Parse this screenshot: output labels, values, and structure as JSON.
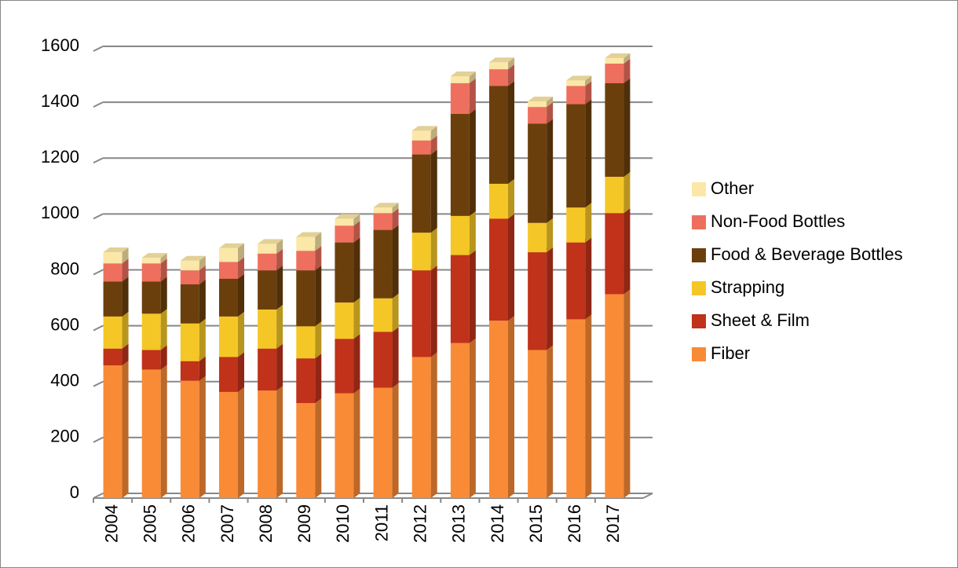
{
  "chart_data": {
    "type": "stacked-bar-3d",
    "categories": [
      "2004",
      "2005",
      "2006",
      "2007",
      "2008",
      "2009",
      "2010",
      "2011",
      "2012",
      "2013",
      "2014",
      "2015",
      "2016",
      "2017"
    ],
    "series": [
      {
        "name": "Fiber",
        "color": "#f98b36",
        "values": [
          475,
          460,
          420,
          380,
          385,
          340,
          375,
          395,
          505,
          555,
          635,
          530,
          640,
          730
        ]
      },
      {
        "name": "Sheet & Film",
        "color": "#c0321a",
        "values": [
          60,
          70,
          70,
          125,
          150,
          160,
          195,
          200,
          310,
          315,
          365,
          350,
          275,
          290
        ]
      },
      {
        "name": "Strapping",
        "color": "#f5c726",
        "values": [
          115,
          130,
          135,
          145,
          140,
          115,
          130,
          120,
          135,
          140,
          125,
          105,
          125,
          130
        ]
      },
      {
        "name": "Food & Beverage Bottles",
        "color": "#6b3f0c",
        "values": [
          125,
          115,
          140,
          135,
          140,
          200,
          215,
          245,
          280,
          365,
          350,
          355,
          370,
          335
        ]
      },
      {
        "name": "Non-Food Bottles",
        "color": "#ef6f5e",
        "values": [
          65,
          65,
          50,
          60,
          60,
          70,
          60,
          60,
          50,
          110,
          60,
          60,
          65,
          70
        ]
      },
      {
        "name": "Other",
        "color": "#fbe7a7",
        "values": [
          40,
          20,
          35,
          50,
          35,
          50,
          25,
          20,
          35,
          25,
          25,
          20,
          20,
          20
        ]
      }
    ],
    "ylim": [
      0,
      1600
    ],
    "yticks": [
      0,
      200,
      400,
      600,
      800,
      1000,
      1200,
      1400,
      1600
    ],
    "grid": true,
    "legend": "right"
  }
}
